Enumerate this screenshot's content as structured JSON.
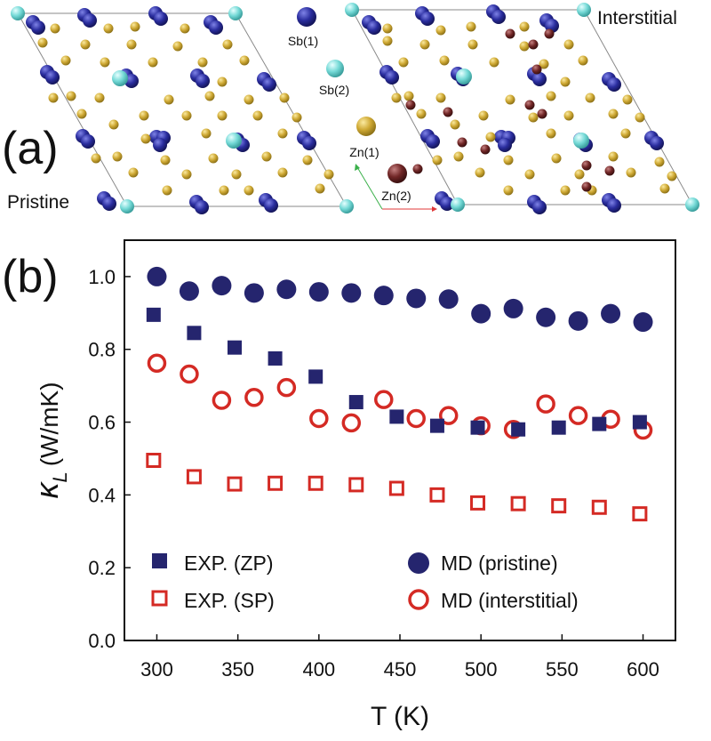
{
  "panel_a": {
    "label": "(a)",
    "left_caption": "Pristine",
    "right_caption": "Interstitial",
    "legend": [
      {
        "name": "Sb(1)",
        "color": "#26289a",
        "text_color": "#1a1a6e"
      },
      {
        "name": "Sb(2)",
        "color": "#6fd8d6",
        "text_color": "#3aa8a8"
      },
      {
        "name": "Zn(1)",
        "color": "#c9a52c",
        "text_color": "#8a7416"
      },
      {
        "name": "Zn(2)",
        "color": "#6b2424",
        "text_color": "#3a1414"
      }
    ]
  },
  "chart_data": {
    "type": "scatter",
    "panel_label": "(b)",
    "title": "",
    "xlabel": "T (K)",
    "ylabel": "κ_L (W/mK)",
    "ylabel_symbol": "κ",
    "ylabel_sub": "L",
    "ylabel_unit": "(W/mK)",
    "xlim": [
      280,
      620
    ],
    "ylim": [
      0.0,
      1.1
    ],
    "xticks": [
      300,
      350,
      400,
      450,
      500,
      550,
      600
    ],
    "yticks": [
      0.0,
      0.2,
      0.4,
      0.6,
      0.8,
      1.0
    ],
    "ytick_labels": [
      "0.0",
      "0.2",
      "0.4",
      "0.6",
      "0.8",
      "1.0"
    ],
    "grid": false,
    "legend_position": "bottom",
    "series": [
      {
        "name": "EXP. (ZP)",
        "marker": "square-filled",
        "color": "#25256e",
        "x": [
          298,
          323,
          348,
          373,
          398,
          423,
          448,
          473,
          498,
          523,
          548,
          573,
          598
        ],
        "y": [
          0.895,
          0.845,
          0.805,
          0.775,
          0.725,
          0.655,
          0.615,
          0.59,
          0.585,
          0.58,
          0.585,
          0.595,
          0.6
        ]
      },
      {
        "name": "EXP. (SP)",
        "marker": "square-open",
        "color": "#d42a24",
        "x": [
          298,
          323,
          348,
          373,
          398,
          423,
          448,
          473,
          498,
          523,
          548,
          573,
          598
        ],
        "y": [
          0.495,
          0.45,
          0.43,
          0.432,
          0.432,
          0.428,
          0.418,
          0.4,
          0.378,
          0.376,
          0.37,
          0.366,
          0.348
        ]
      },
      {
        "name": "MD (pristine)",
        "marker": "circle-filled",
        "color": "#25256e",
        "x": [
          300,
          320,
          340,
          360,
          380,
          400,
          420,
          440,
          460,
          480,
          500,
          520,
          540,
          560,
          580,
          600
        ],
        "y": [
          1.0,
          0.96,
          0.975,
          0.955,
          0.965,
          0.958,
          0.955,
          0.948,
          0.94,
          0.938,
          0.898,
          0.912,
          0.888,
          0.878,
          0.898,
          0.875
        ]
      },
      {
        "name": "MD (interstitial)",
        "marker": "circle-open",
        "color": "#d42a24",
        "x": [
          300,
          320,
          340,
          360,
          380,
          400,
          420,
          440,
          460,
          480,
          500,
          520,
          540,
          560,
          580,
          600
        ],
        "y": [
          0.762,
          0.732,
          0.66,
          0.668,
          0.695,
          0.61,
          0.598,
          0.662,
          0.61,
          0.618,
          0.59,
          0.58,
          0.65,
          0.618,
          0.608,
          0.578
        ]
      }
    ]
  }
}
